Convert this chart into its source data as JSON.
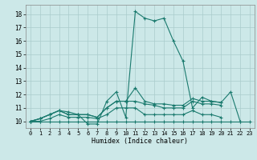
{
  "xlabel": "Humidex (Indice chaleur)",
  "xlim": [
    -0.5,
    23.5
  ],
  "ylim": [
    9.5,
    18.7
  ],
  "yticks": [
    10,
    11,
    12,
    13,
    14,
    15,
    16,
    17,
    18
  ],
  "xticks": [
    0,
    1,
    2,
    3,
    4,
    5,
    6,
    7,
    8,
    9,
    10,
    11,
    12,
    13,
    14,
    15,
    16,
    17,
    18,
    19,
    20,
    21,
    22,
    23
  ],
  "bg_color": "#cce8e8",
  "line_color": "#1a7a6e",
  "grid_color": "#aacccc",
  "series": [
    [
      10.0,
      10.2,
      10.5,
      10.8,
      10.7,
      10.5,
      9.8,
      9.8,
      11.5,
      12.2,
      10.3,
      18.2,
      17.7,
      17.5,
      17.7,
      16.0,
      14.5,
      11.0,
      11.8,
      11.5,
      11.4,
      12.2,
      10.0,
      null
    ],
    [
      10.0,
      10.2,
      10.5,
      10.8,
      10.5,
      10.5,
      10.5,
      10.3,
      11.0,
      11.5,
      11.5,
      12.5,
      11.5,
      11.3,
      11.3,
      11.2,
      11.2,
      11.7,
      11.5,
      11.5,
      11.4,
      null,
      null,
      null
    ],
    [
      10.0,
      10.2,
      10.5,
      10.8,
      10.5,
      10.5,
      10.5,
      10.3,
      11.0,
      11.5,
      11.5,
      11.5,
      11.3,
      11.2,
      11.0,
      11.0,
      11.0,
      11.5,
      11.3,
      11.3,
      11.2,
      null,
      null,
      null
    ],
    [
      10.0,
      10.0,
      10.2,
      10.5,
      10.3,
      10.3,
      10.3,
      10.2,
      10.5,
      11.0,
      11.0,
      11.0,
      10.5,
      10.5,
      10.5,
      10.5,
      10.5,
      10.8,
      10.5,
      10.5,
      10.3,
      null,
      null,
      null
    ],
    [
      10.0,
      10.0,
      10.0,
      10.0,
      10.0,
      10.0,
      10.0,
      10.0,
      10.0,
      10.0,
      10.0,
      10.0,
      10.0,
      10.0,
      10.0,
      10.0,
      10.0,
      10.0,
      10.0,
      10.0,
      10.0,
      10.0,
      10.0,
      10.0
    ]
  ]
}
